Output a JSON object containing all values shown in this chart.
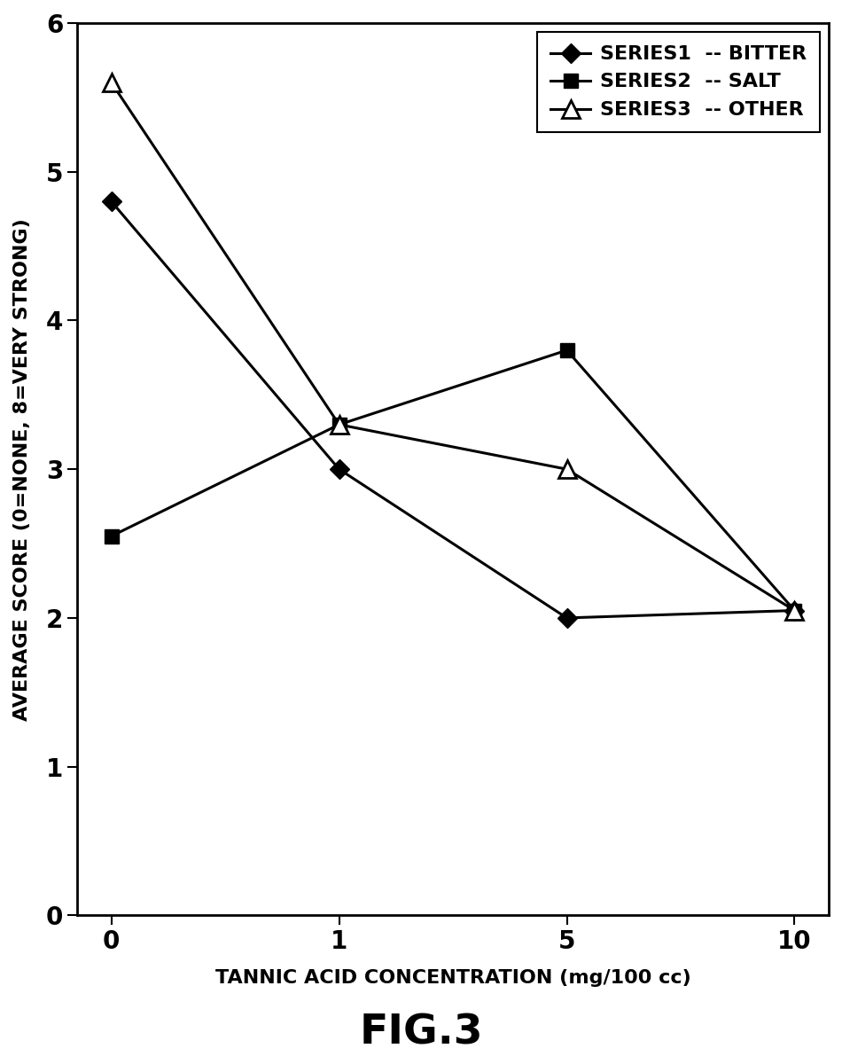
{
  "x_positions": [
    0,
    1,
    2,
    3
  ],
  "x_labels": [
    "0",
    "1",
    "5",
    "10"
  ],
  "series1": [
    4.8,
    3.0,
    2.0,
    2.05
  ],
  "series2": [
    2.55,
    3.3,
    3.8,
    2.05
  ],
  "series3": [
    5.6,
    3.3,
    3.0,
    2.05
  ],
  "xlabel": "TANNIC ACID CONCENTRATION (mg/100 cc)",
  "ylabel": "AVERAGE SCORE (0=NONE, 8=VERY STRONG)",
  "title": "FIG.3",
  "ylim": [
    0,
    6
  ],
  "xlim": [
    -0.15,
    3.15
  ],
  "yticks": [
    0,
    1,
    2,
    3,
    4,
    5,
    6
  ],
  "legend_labels": [
    "SERIES1  -- BITTER",
    "SERIES2  -- SALT",
    "SERIES3  -- OTHER"
  ],
  "line_color": "#000000",
  "background_color": "#ffffff",
  "line_width": 2.2,
  "marker_size": 11
}
